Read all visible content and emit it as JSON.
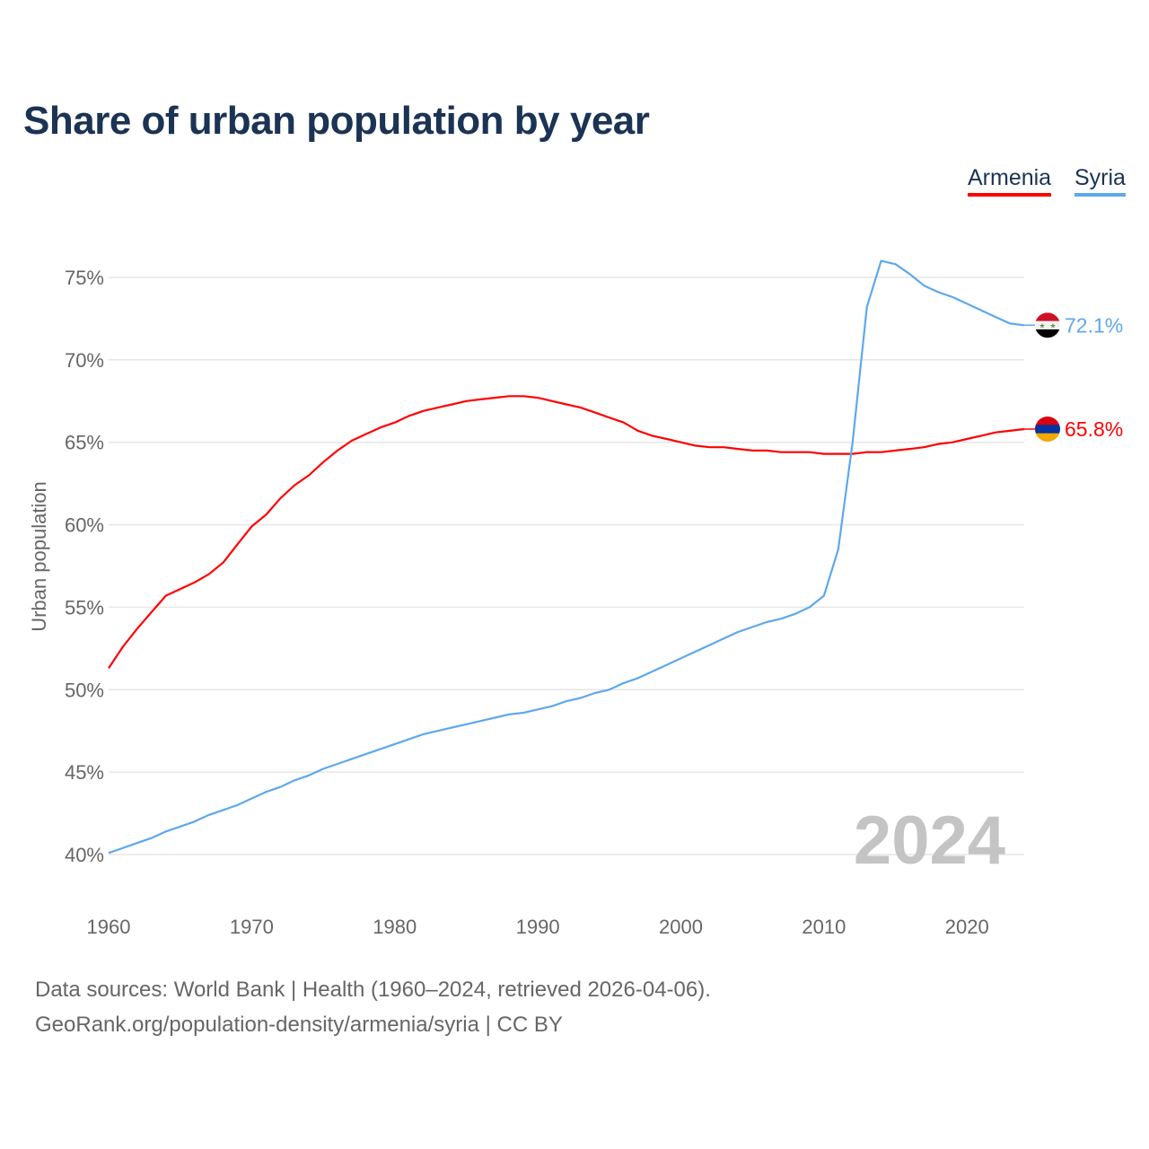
{
  "title": "Share of urban population by year",
  "legend": [
    {
      "label": "Armenia",
      "color": "#ff0000"
    },
    {
      "label": "Syria",
      "color": "#5ea8ec"
    }
  ],
  "footer": {
    "line1": "Data sources: World Bank | Health (1960–2024, retrieved 2026-04-06).",
    "line2": "GeoRank.org/population-density/armenia/syria | CC BY"
  },
  "chart_data": {
    "type": "line",
    "title": "Share of urban population by year",
    "xlabel": "",
    "ylabel": "Urban population",
    "xlim": [
      1960,
      2024
    ],
    "ylim": [
      38,
      77
    ],
    "xticks": [
      1960,
      1970,
      1980,
      1990,
      2000,
      2010,
      2020
    ],
    "yticks": [
      40,
      45,
      50,
      55,
      60,
      65,
      70,
      75
    ],
    "ytick_labels": [
      "40%",
      "45%",
      "50%",
      "55%",
      "60%",
      "65%",
      "70%",
      "75%"
    ],
    "year_watermark": "2024",
    "grid": true,
    "legend_position": "top-right",
    "x": [
      1960,
      1961,
      1962,
      1963,
      1964,
      1965,
      1966,
      1967,
      1968,
      1969,
      1970,
      1971,
      1972,
      1973,
      1974,
      1975,
      1976,
      1977,
      1978,
      1979,
      1980,
      1981,
      1982,
      1983,
      1984,
      1985,
      1986,
      1987,
      1988,
      1989,
      1990,
      1991,
      1992,
      1993,
      1994,
      1995,
      1996,
      1997,
      1998,
      1999,
      2000,
      2001,
      2002,
      2003,
      2004,
      2005,
      2006,
      2007,
      2008,
      2009,
      2010,
      2011,
      2012,
      2013,
      2014,
      2015,
      2016,
      2017,
      2018,
      2019,
      2020,
      2021,
      2022,
      2023,
      2024
    ],
    "series": [
      {
        "name": "Armenia",
        "color": "#ff0000",
        "end_label": "65.8%",
        "flag": "armenia-flag",
        "values": [
          51.3,
          52.6,
          53.7,
          54.7,
          55.7,
          56.1,
          56.5,
          57.0,
          57.7,
          58.8,
          59.9,
          60.6,
          61.6,
          62.4,
          63.0,
          63.8,
          64.5,
          65.1,
          65.5,
          65.9,
          66.2,
          66.6,
          66.9,
          67.1,
          67.3,
          67.5,
          67.6,
          67.7,
          67.8,
          67.8,
          67.7,
          67.5,
          67.3,
          67.1,
          66.8,
          66.5,
          66.2,
          65.7,
          65.4,
          65.2,
          65.0,
          64.8,
          64.7,
          64.7,
          64.6,
          64.5,
          64.5,
          64.4,
          64.4,
          64.4,
          64.3,
          64.3,
          64.3,
          64.4,
          64.4,
          64.5,
          64.6,
          64.7,
          64.9,
          65.0,
          65.2,
          65.4,
          65.6,
          65.7,
          65.8
        ]
      },
      {
        "name": "Syria",
        "color": "#5ea8ec",
        "end_label": "72.1%",
        "flag": "syria-flag",
        "values": [
          40.1,
          40.4,
          40.7,
          41.0,
          41.4,
          41.7,
          42.0,
          42.4,
          42.7,
          43.0,
          43.4,
          43.8,
          44.1,
          44.5,
          44.8,
          45.2,
          45.5,
          45.8,
          46.1,
          46.4,
          46.7,
          47.0,
          47.3,
          47.5,
          47.7,
          47.9,
          48.1,
          48.3,
          48.5,
          48.6,
          48.8,
          49.0,
          49.3,
          49.5,
          49.8,
          50.0,
          50.4,
          50.7,
          51.1,
          51.5,
          51.9,
          52.3,
          52.7,
          53.1,
          53.5,
          53.8,
          54.1,
          54.3,
          54.6,
          55.0,
          55.7,
          58.5,
          65.0,
          73.2,
          76.0,
          75.8,
          75.2,
          74.5,
          74.1,
          73.8,
          73.4,
          73.0,
          72.6,
          72.2,
          72.1
        ]
      }
    ]
  }
}
